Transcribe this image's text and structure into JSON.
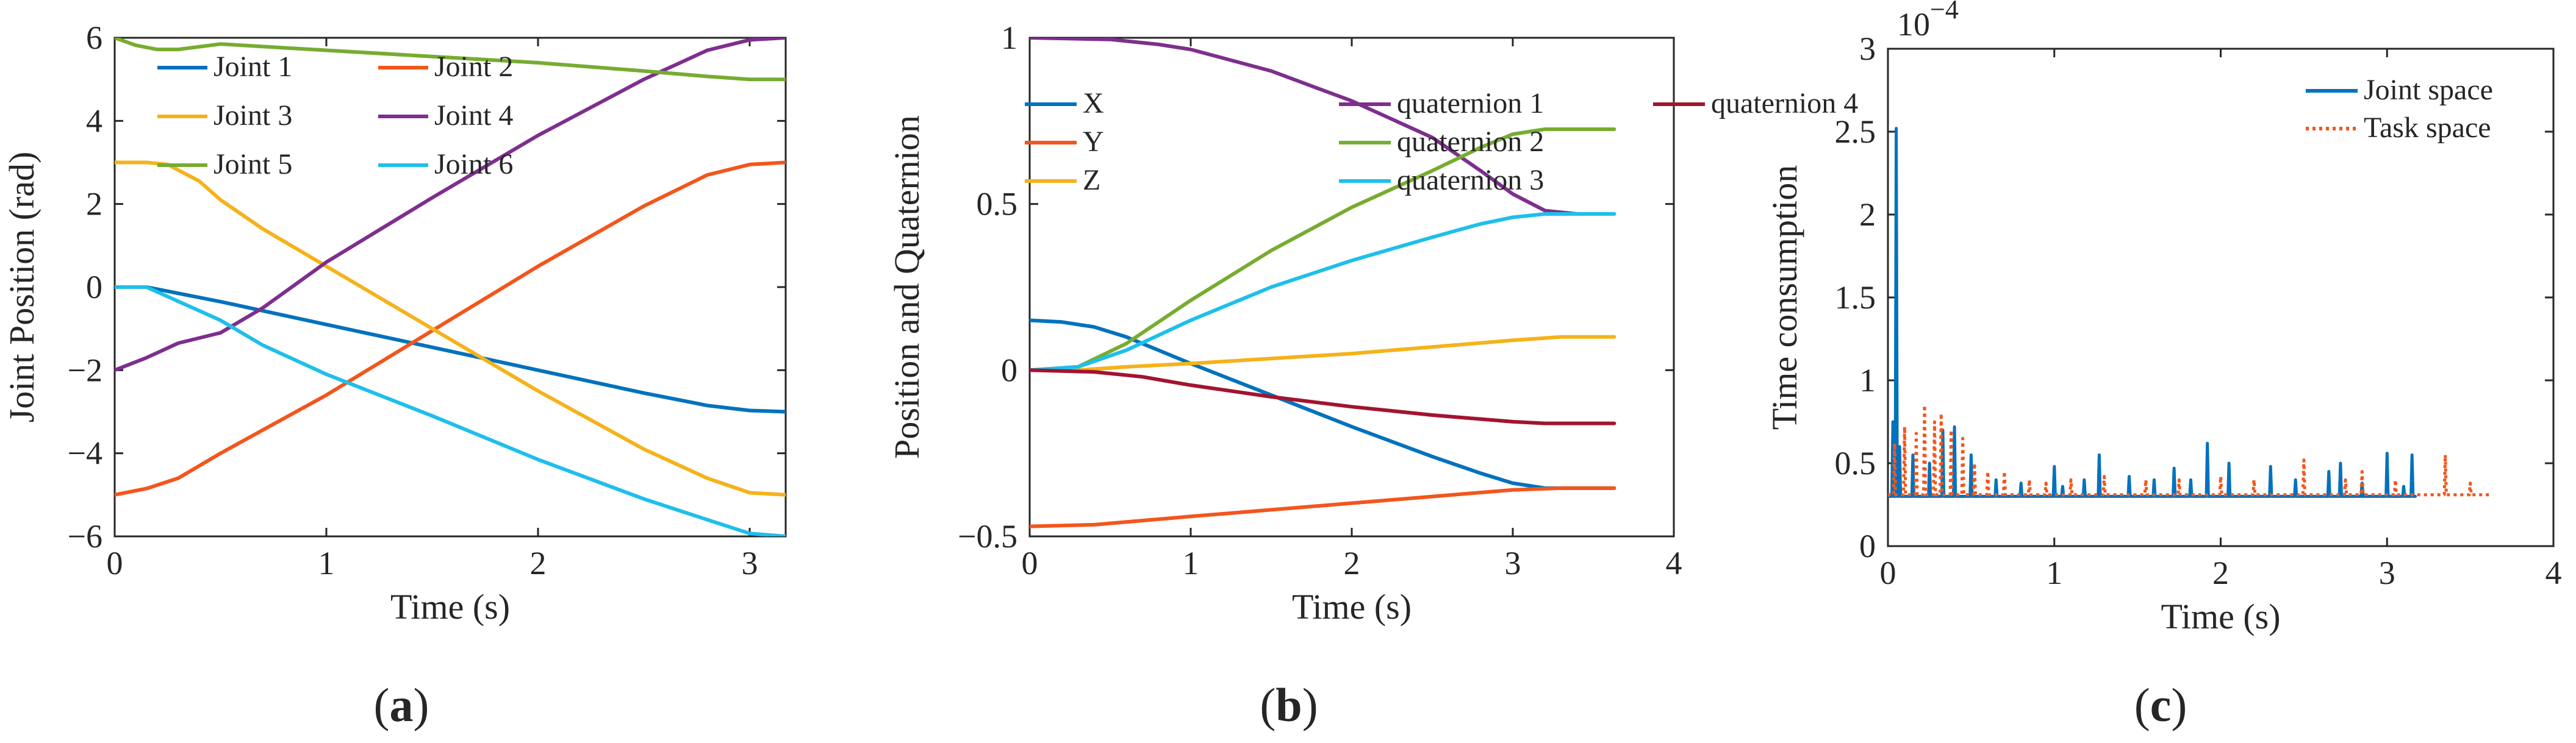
{
  "chart_data": [
    {
      "panel": "a",
      "caption": {
        "open": "(",
        "letter": "a",
        "close": ")"
      },
      "type": "line",
      "xlabel": "Time (s)",
      "ylabel": "Joint Position (rad)",
      "xlim": [
        0,
        3.17
      ],
      "ylim": [
        -6,
        6
      ],
      "xticks": [
        0,
        1,
        2,
        3
      ],
      "yticks": [
        -6,
        -4,
        -2,
        0,
        2,
        4,
        6
      ],
      "legend_position": "top-left",
      "legend_columns": 2,
      "series": [
        {
          "name": "Joint 1",
          "color": "#0072BD",
          "points": [
            [
              0,
              0
            ],
            [
              0.15,
              0
            ],
            [
              0.5,
              -0.35
            ],
            [
              1,
              -0.9
            ],
            [
              1.5,
              -1.45
            ],
            [
              2,
              -2.0
            ],
            [
              2.5,
              -2.55
            ],
            [
              2.8,
              -2.85
            ],
            [
              3,
              -2.97
            ],
            [
              3.17,
              -3.0
            ]
          ]
        },
        {
          "name": "Joint 2",
          "color": "#F2561D",
          "points": [
            [
              0,
              -5
            ],
            [
              0.15,
              -4.85
            ],
            [
              0.3,
              -4.6
            ],
            [
              0.5,
              -4.0
            ],
            [
              1,
              -2.6
            ],
            [
              1.5,
              -1.05
            ],
            [
              2,
              0.5
            ],
            [
              2.5,
              1.95
            ],
            [
              2.8,
              2.7
            ],
            [
              3,
              2.95
            ],
            [
              3.17,
              3.0
            ]
          ]
        },
        {
          "name": "Joint 3",
          "color": "#F5B21A",
          "points": [
            [
              0,
              3
            ],
            [
              0.15,
              3
            ],
            [
              0.25,
              2.95
            ],
            [
              0.4,
              2.55
            ],
            [
              0.5,
              2.1
            ],
            [
              0.7,
              1.4
            ],
            [
              1,
              0.5
            ],
            [
              1.5,
              -1.0
            ],
            [
              2,
              -2.5
            ],
            [
              2.5,
              -3.9
            ],
            [
              2.8,
              -4.6
            ],
            [
              3,
              -4.95
            ],
            [
              3.17,
              -5.0
            ]
          ]
        },
        {
          "name": "Joint 4",
          "color": "#7E2F8E",
          "points": [
            [
              0,
              -2
            ],
            [
              0.15,
              -1.7
            ],
            [
              0.3,
              -1.35
            ],
            [
              0.5,
              -1.1
            ],
            [
              0.7,
              -0.5
            ],
            [
              1,
              0.6
            ],
            [
              1.5,
              2.15
            ],
            [
              2,
              3.65
            ],
            [
              2.5,
              5.0
            ],
            [
              2.8,
              5.7
            ],
            [
              3,
              5.95
            ],
            [
              3.17,
              6.0
            ]
          ]
        },
        {
          "name": "Joint 5",
          "color": "#77AC30",
          "points": [
            [
              0,
              6
            ],
            [
              0.1,
              5.82
            ],
            [
              0.2,
              5.72
            ],
            [
              0.3,
              5.72
            ],
            [
              0.5,
              5.85
            ],
            [
              1,
              5.7
            ],
            [
              1.5,
              5.55
            ],
            [
              2,
              5.4
            ],
            [
              2.5,
              5.2
            ],
            [
              2.8,
              5.07
            ],
            [
              3,
              5.0
            ],
            [
              3.17,
              5.0
            ]
          ]
        },
        {
          "name": "Joint 6",
          "color": "#1EBFEB",
          "points": [
            [
              0,
              0
            ],
            [
              0.15,
              0
            ],
            [
              0.5,
              -0.8
            ],
            [
              0.7,
              -1.4
            ],
            [
              1,
              -2.1
            ],
            [
              1.5,
              -3.1
            ],
            [
              2,
              -4.15
            ],
            [
              2.5,
              -5.1
            ],
            [
              2.8,
              -5.6
            ],
            [
              3,
              -5.93
            ],
            [
              3.17,
              -6.0
            ]
          ]
        }
      ]
    },
    {
      "panel": "b",
      "caption": {
        "open": "(",
        "letter": "b",
        "close": ")"
      },
      "type": "line",
      "xlabel": "Time (s)",
      "ylabel": "Position and Quaternion",
      "xlim": [
        0,
        4
      ],
      "ylim": [
        -0.5,
        1
      ],
      "xticks": [
        0,
        1,
        2,
        3,
        4
      ],
      "yticks": [
        -0.5,
        0,
        0.5,
        1
      ],
      "legend_position": "top-left",
      "legend_columns": 3,
      "series": [
        {
          "name": "X",
          "color": "#0072BD",
          "points": [
            [
              0,
              0.15
            ],
            [
              0.2,
              0.145
            ],
            [
              0.4,
              0.13
            ],
            [
              0.6,
              0.1
            ],
            [
              1,
              0.02
            ],
            [
              1.5,
              -0.075
            ],
            [
              2,
              -0.17
            ],
            [
              2.5,
              -0.26
            ],
            [
              2.8,
              -0.31
            ],
            [
              3,
              -0.34
            ],
            [
              3.2,
              -0.355
            ],
            [
              3.63,
              -0.355
            ]
          ]
        },
        {
          "name": "Y",
          "color": "#F2561D",
          "points": [
            [
              0,
              -0.47
            ],
            [
              0.4,
              -0.465
            ],
            [
              1,
              -0.44
            ],
            [
              1.5,
              -0.42
            ],
            [
              2,
              -0.4
            ],
            [
              2.5,
              -0.38
            ],
            [
              3,
              -0.36
            ],
            [
              3.3,
              -0.355
            ],
            [
              3.63,
              -0.355
            ]
          ]
        },
        {
          "name": "Z",
          "color": "#F5B21A",
          "points": [
            [
              0,
              0
            ],
            [
              0.3,
              0
            ],
            [
              0.6,
              0.01
            ],
            [
              1,
              0.02
            ],
            [
              1.5,
              0.035
            ],
            [
              2,
              0.05
            ],
            [
              2.5,
              0.07
            ],
            [
              3,
              0.09
            ],
            [
              3.3,
              0.1
            ],
            [
              3.63,
              0.1
            ]
          ]
        },
        {
          "name": "quaternion 1",
          "color": "#7E2F8E",
          "points": [
            [
              0,
              1
            ],
            [
              0.5,
              0.995
            ],
            [
              0.8,
              0.98
            ],
            [
              1,
              0.965
            ],
            [
              1.5,
              0.9
            ],
            [
              2,
              0.81
            ],
            [
              2.5,
              0.7
            ],
            [
              2.8,
              0.6
            ],
            [
              3,
              0.53
            ],
            [
              3.2,
              0.48
            ],
            [
              3.4,
              0.47
            ],
            [
              3.63,
              0.47
            ]
          ]
        },
        {
          "name": "quaternion 2",
          "color": "#77AC30",
          "points": [
            [
              0,
              0
            ],
            [
              0.3,
              0.01
            ],
            [
              0.6,
              0.08
            ],
            [
              1,
              0.21
            ],
            [
              1.5,
              0.36
            ],
            [
              2,
              0.49
            ],
            [
              2.5,
              0.6
            ],
            [
              2.8,
              0.67
            ],
            [
              3,
              0.71
            ],
            [
              3.2,
              0.725
            ],
            [
              3.63,
              0.725
            ]
          ]
        },
        {
          "name": "quaternion 3",
          "color": "#1EBFEB",
          "points": [
            [
              0,
              0
            ],
            [
              0.3,
              0.01
            ],
            [
              0.6,
              0.06
            ],
            [
              1,
              0.15
            ],
            [
              1.5,
              0.25
            ],
            [
              2,
              0.33
            ],
            [
              2.5,
              0.4
            ],
            [
              2.8,
              0.44
            ],
            [
              3,
              0.46
            ],
            [
              3.2,
              0.47
            ],
            [
              3.63,
              0.47
            ]
          ]
        },
        {
          "name": "quaternion 4",
          "color": "#A2142F",
          "points": [
            [
              0,
              0
            ],
            [
              0.4,
              -0.005
            ],
            [
              0.7,
              -0.02
            ],
            [
              1,
              -0.045
            ],
            [
              1.5,
              -0.08
            ],
            [
              2,
              -0.11
            ],
            [
              2.5,
              -0.135
            ],
            [
              3,
              -0.155
            ],
            [
              3.2,
              -0.16
            ],
            [
              3.63,
              -0.16
            ]
          ]
        }
      ]
    },
    {
      "panel": "c",
      "caption": {
        "open": "(",
        "letter": "c",
        "close": ")"
      },
      "type": "line",
      "xlabel": "Time (s)",
      "ylabel": "Time consumption",
      "exponent_label": "10",
      "exponent_power": "−4",
      "xlim": [
        0,
        4
      ],
      "ylim": [
        0,
        3
      ],
      "xticks": [
        0,
        1,
        2,
        3,
        4
      ],
      "yticks": [
        0,
        0.5,
        1,
        1.5,
        2,
        2.5,
        3
      ],
      "legend_position": "top-right",
      "legend_columns": 1,
      "series": [
        {
          "name": "Joint space",
          "color": "#0072BD",
          "style": "solid",
          "baseline": 0.3,
          "end_x": 3.17,
          "spikes": [
            [
              0.03,
              0.75
            ],
            [
              0.05,
              2.52
            ],
            [
              0.07,
              0.6
            ],
            [
              0.15,
              0.55
            ],
            [
              0.25,
              0.5
            ],
            [
              0.33,
              0.7
            ],
            [
              0.4,
              0.72
            ],
            [
              0.5,
              0.55
            ],
            [
              0.65,
              0.4
            ],
            [
              0.8,
              0.38
            ],
            [
              1.0,
              0.48
            ],
            [
              1.05,
              0.36
            ],
            [
              1.18,
              0.4
            ],
            [
              1.27,
              0.55
            ],
            [
              1.45,
              0.42
            ],
            [
              1.6,
              0.4
            ],
            [
              1.72,
              0.47
            ],
            [
              1.82,
              0.4
            ],
            [
              1.92,
              0.62
            ],
            [
              2.05,
              0.5
            ],
            [
              2.3,
              0.48
            ],
            [
              2.45,
              0.4
            ],
            [
              2.65,
              0.45
            ],
            [
              2.72,
              0.5
            ],
            [
              2.85,
              0.38
            ],
            [
              3.0,
              0.56
            ],
            [
              3.1,
              0.36
            ],
            [
              3.15,
              0.55
            ]
          ]
        },
        {
          "name": "Task space",
          "color": "#F2561D",
          "style": "dotted",
          "baseline": 0.31,
          "end_x": 3.63,
          "spikes": [
            [
              0.04,
              0.62
            ],
            [
              0.1,
              0.72
            ],
            [
              0.17,
              0.68
            ],
            [
              0.22,
              0.85
            ],
            [
              0.28,
              0.75
            ],
            [
              0.32,
              0.8
            ],
            [
              0.38,
              0.7
            ],
            [
              0.45,
              0.65
            ],
            [
              0.52,
              0.5
            ],
            [
              0.6,
              0.45
            ],
            [
              0.7,
              0.45
            ],
            [
              0.85,
              0.4
            ],
            [
              0.95,
              0.38
            ],
            [
              1.1,
              0.4
            ],
            [
              1.3,
              0.42
            ],
            [
              1.55,
              0.4
            ],
            [
              1.75,
              0.4
            ],
            [
              2.0,
              0.42
            ],
            [
              2.2,
              0.4
            ],
            [
              2.5,
              0.52
            ],
            [
              2.75,
              0.4
            ],
            [
              2.85,
              0.45
            ],
            [
              3.05,
              0.4
            ],
            [
              3.35,
              0.55
            ],
            [
              3.5,
              0.38
            ]
          ]
        }
      ]
    }
  ]
}
